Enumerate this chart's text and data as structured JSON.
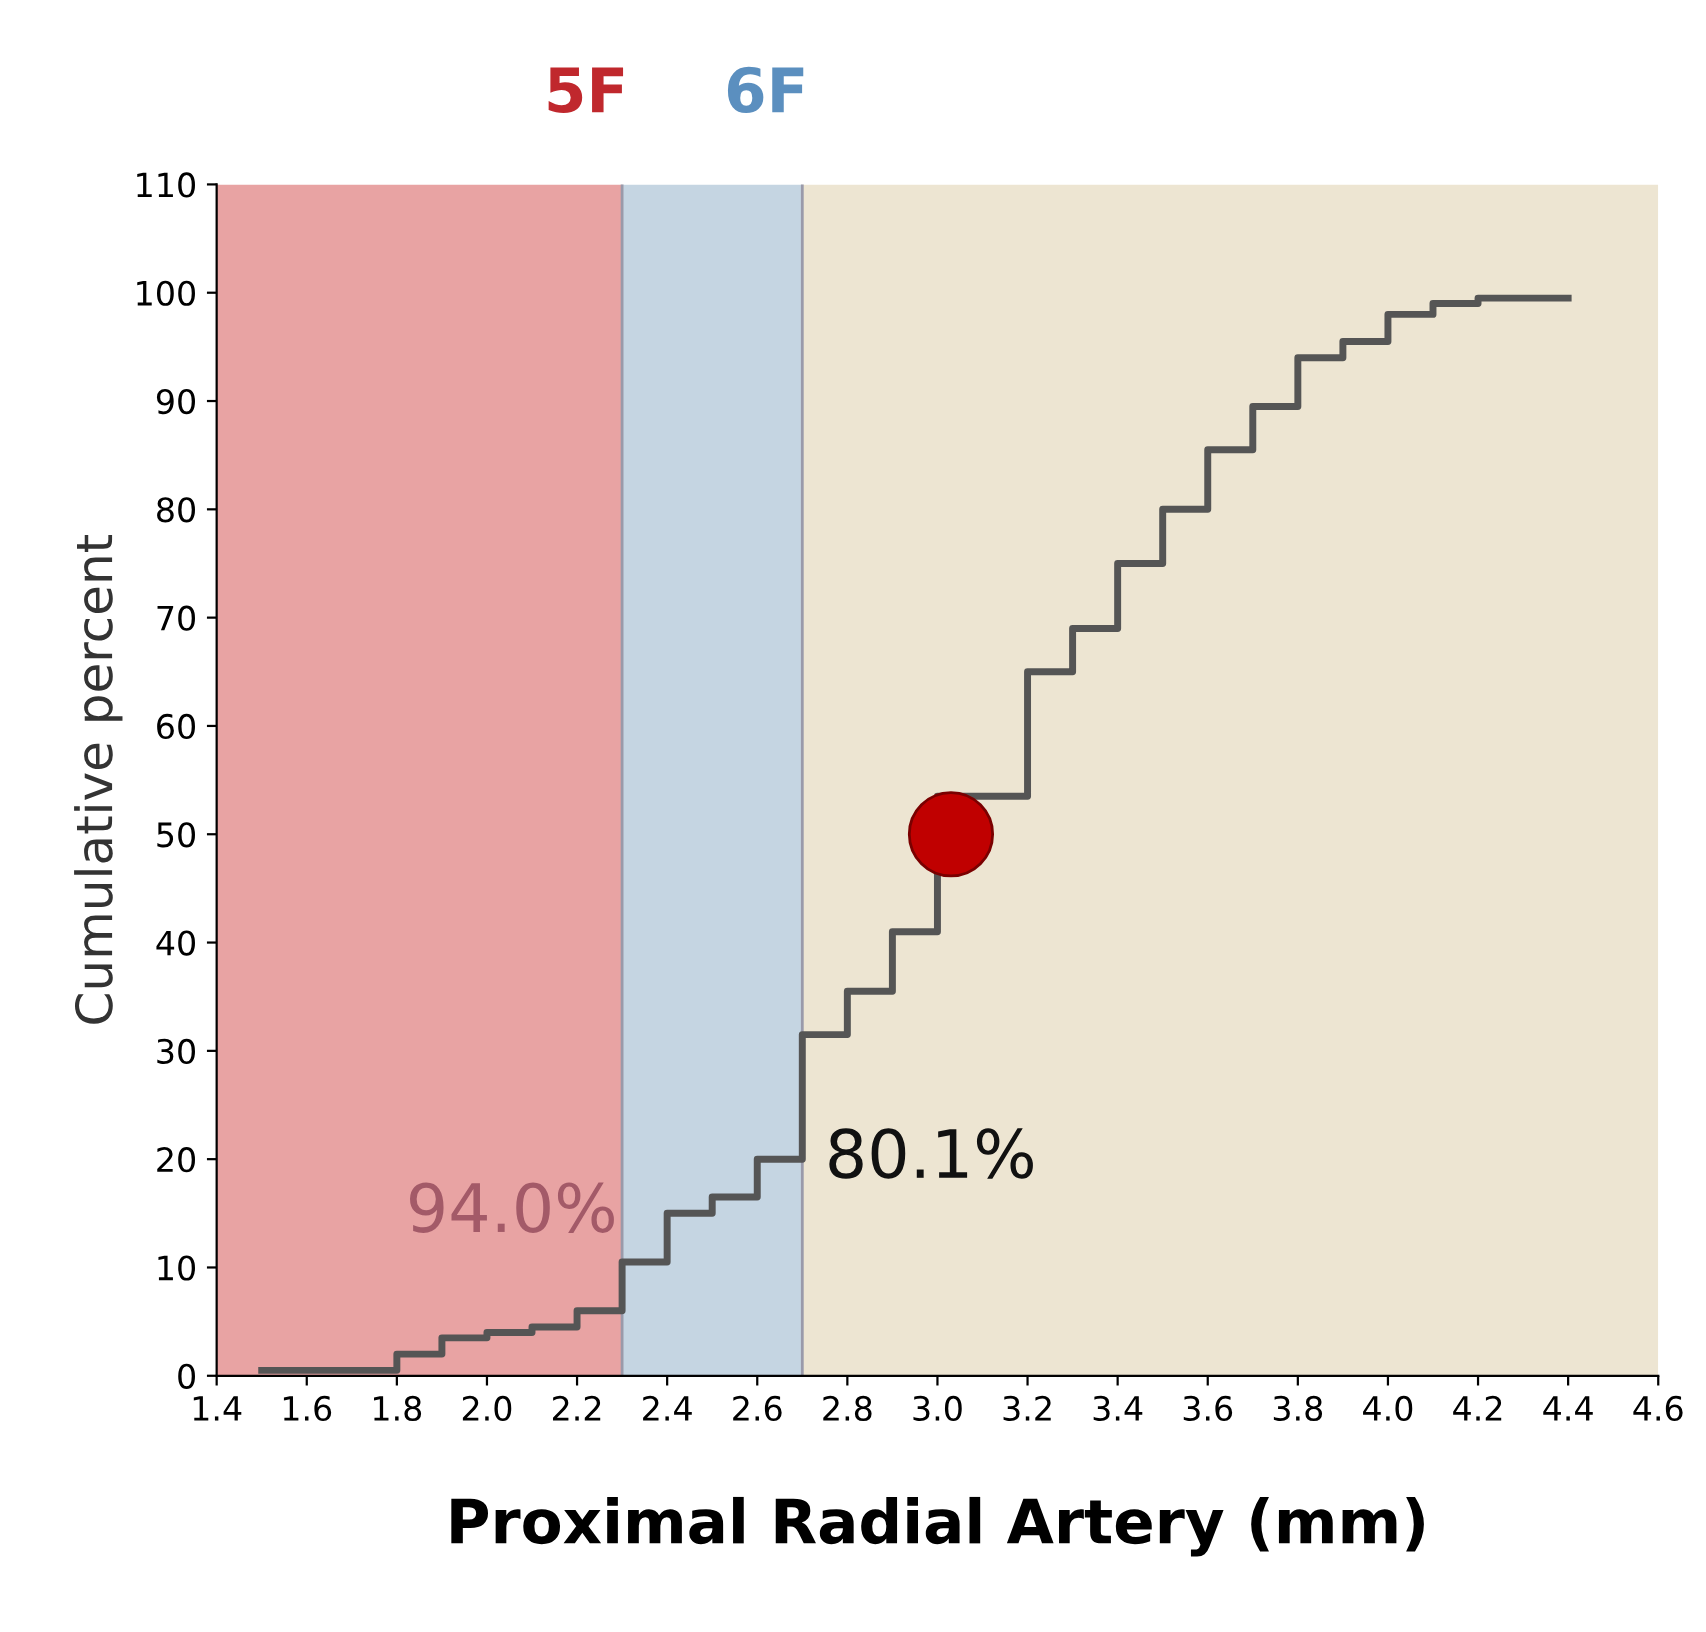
{
  "chart_data": {
    "type": "step",
    "xlabel": "Proximal Radial Artery (mm)",
    "ylabel": "Cumulative percent",
    "x": [
      1.5,
      1.8,
      1.9,
      2.0,
      2.1,
      2.2,
      2.3,
      2.4,
      2.5,
      2.6,
      2.7,
      2.8,
      2.9,
      3.0,
      3.2,
      3.3,
      3.4,
      3.5,
      3.6,
      3.7,
      3.8,
      3.9,
      4.0,
      4.1,
      4.2,
      4.4
    ],
    "series": [
      {
        "color": "#555555",
        "values": [
          0.5,
          2,
          3.5,
          4,
          4.5,
          6,
          10.5,
          15,
          16.5,
          20,
          31.5,
          35.5,
          41,
          53.5,
          65,
          69,
          75,
          80,
          85.5,
          89.5,
          94,
          95.5,
          98,
          99,
          99.5,
          99.5
        ]
      },
      {
        "type": "scatter",
        "color": "#c00000",
        "x": [
          3.03
        ],
        "values": [
          50
        ]
      }
    ],
    "bands": [
      {
        "axis": "x",
        "from": 1.4,
        "to": 2.3,
        "label": "5F",
        "color": "#e8a3a3"
      },
      {
        "axis": "x",
        "from": 2.3,
        "to": 2.7,
        "label": "6F",
        "color": "#c5d5e2"
      },
      {
        "axis": "x",
        "from": 2.7,
        "to": 4.6,
        "color": "#ede5d2"
      }
    ],
    "annotations": [
      {
        "text": "94.0%",
        "x": 2.3,
        "y": 12
      },
      {
        "text": "80.1%",
        "x": 2.7,
        "y": 17
      }
    ],
    "xlim": [
      1.4,
      4.6
    ],
    "xticks": [
      1.4,
      1.6,
      1.8,
      {
        "value": 2,
        "label": "2.0"
      },
      2.2,
      2.4,
      2.6,
      2.8,
      {
        "value": 3,
        "label": "3.0"
      },
      3.2,
      3.4,
      3.6,
      3.8,
      {
        "value": 4,
        "label": "4.0"
      },
      4.2,
      4.4,
      4.6
    ],
    "ref_lines": [
      {
        "axis": "x",
        "value": 2.3,
        "color": "#9a9aaa"
      },
      {
        "axis": "x",
        "value": 2.7,
        "color": "#9a9aaa"
      }
    ],
    "ylim": [
      0,
      110
    ],
    "yticks": [
      0,
      10,
      20,
      30,
      40,
      50,
      60,
      70,
      80,
      90,
      100,
      110
    ],
    "grid": false,
    "line_style": "solid"
  }
}
